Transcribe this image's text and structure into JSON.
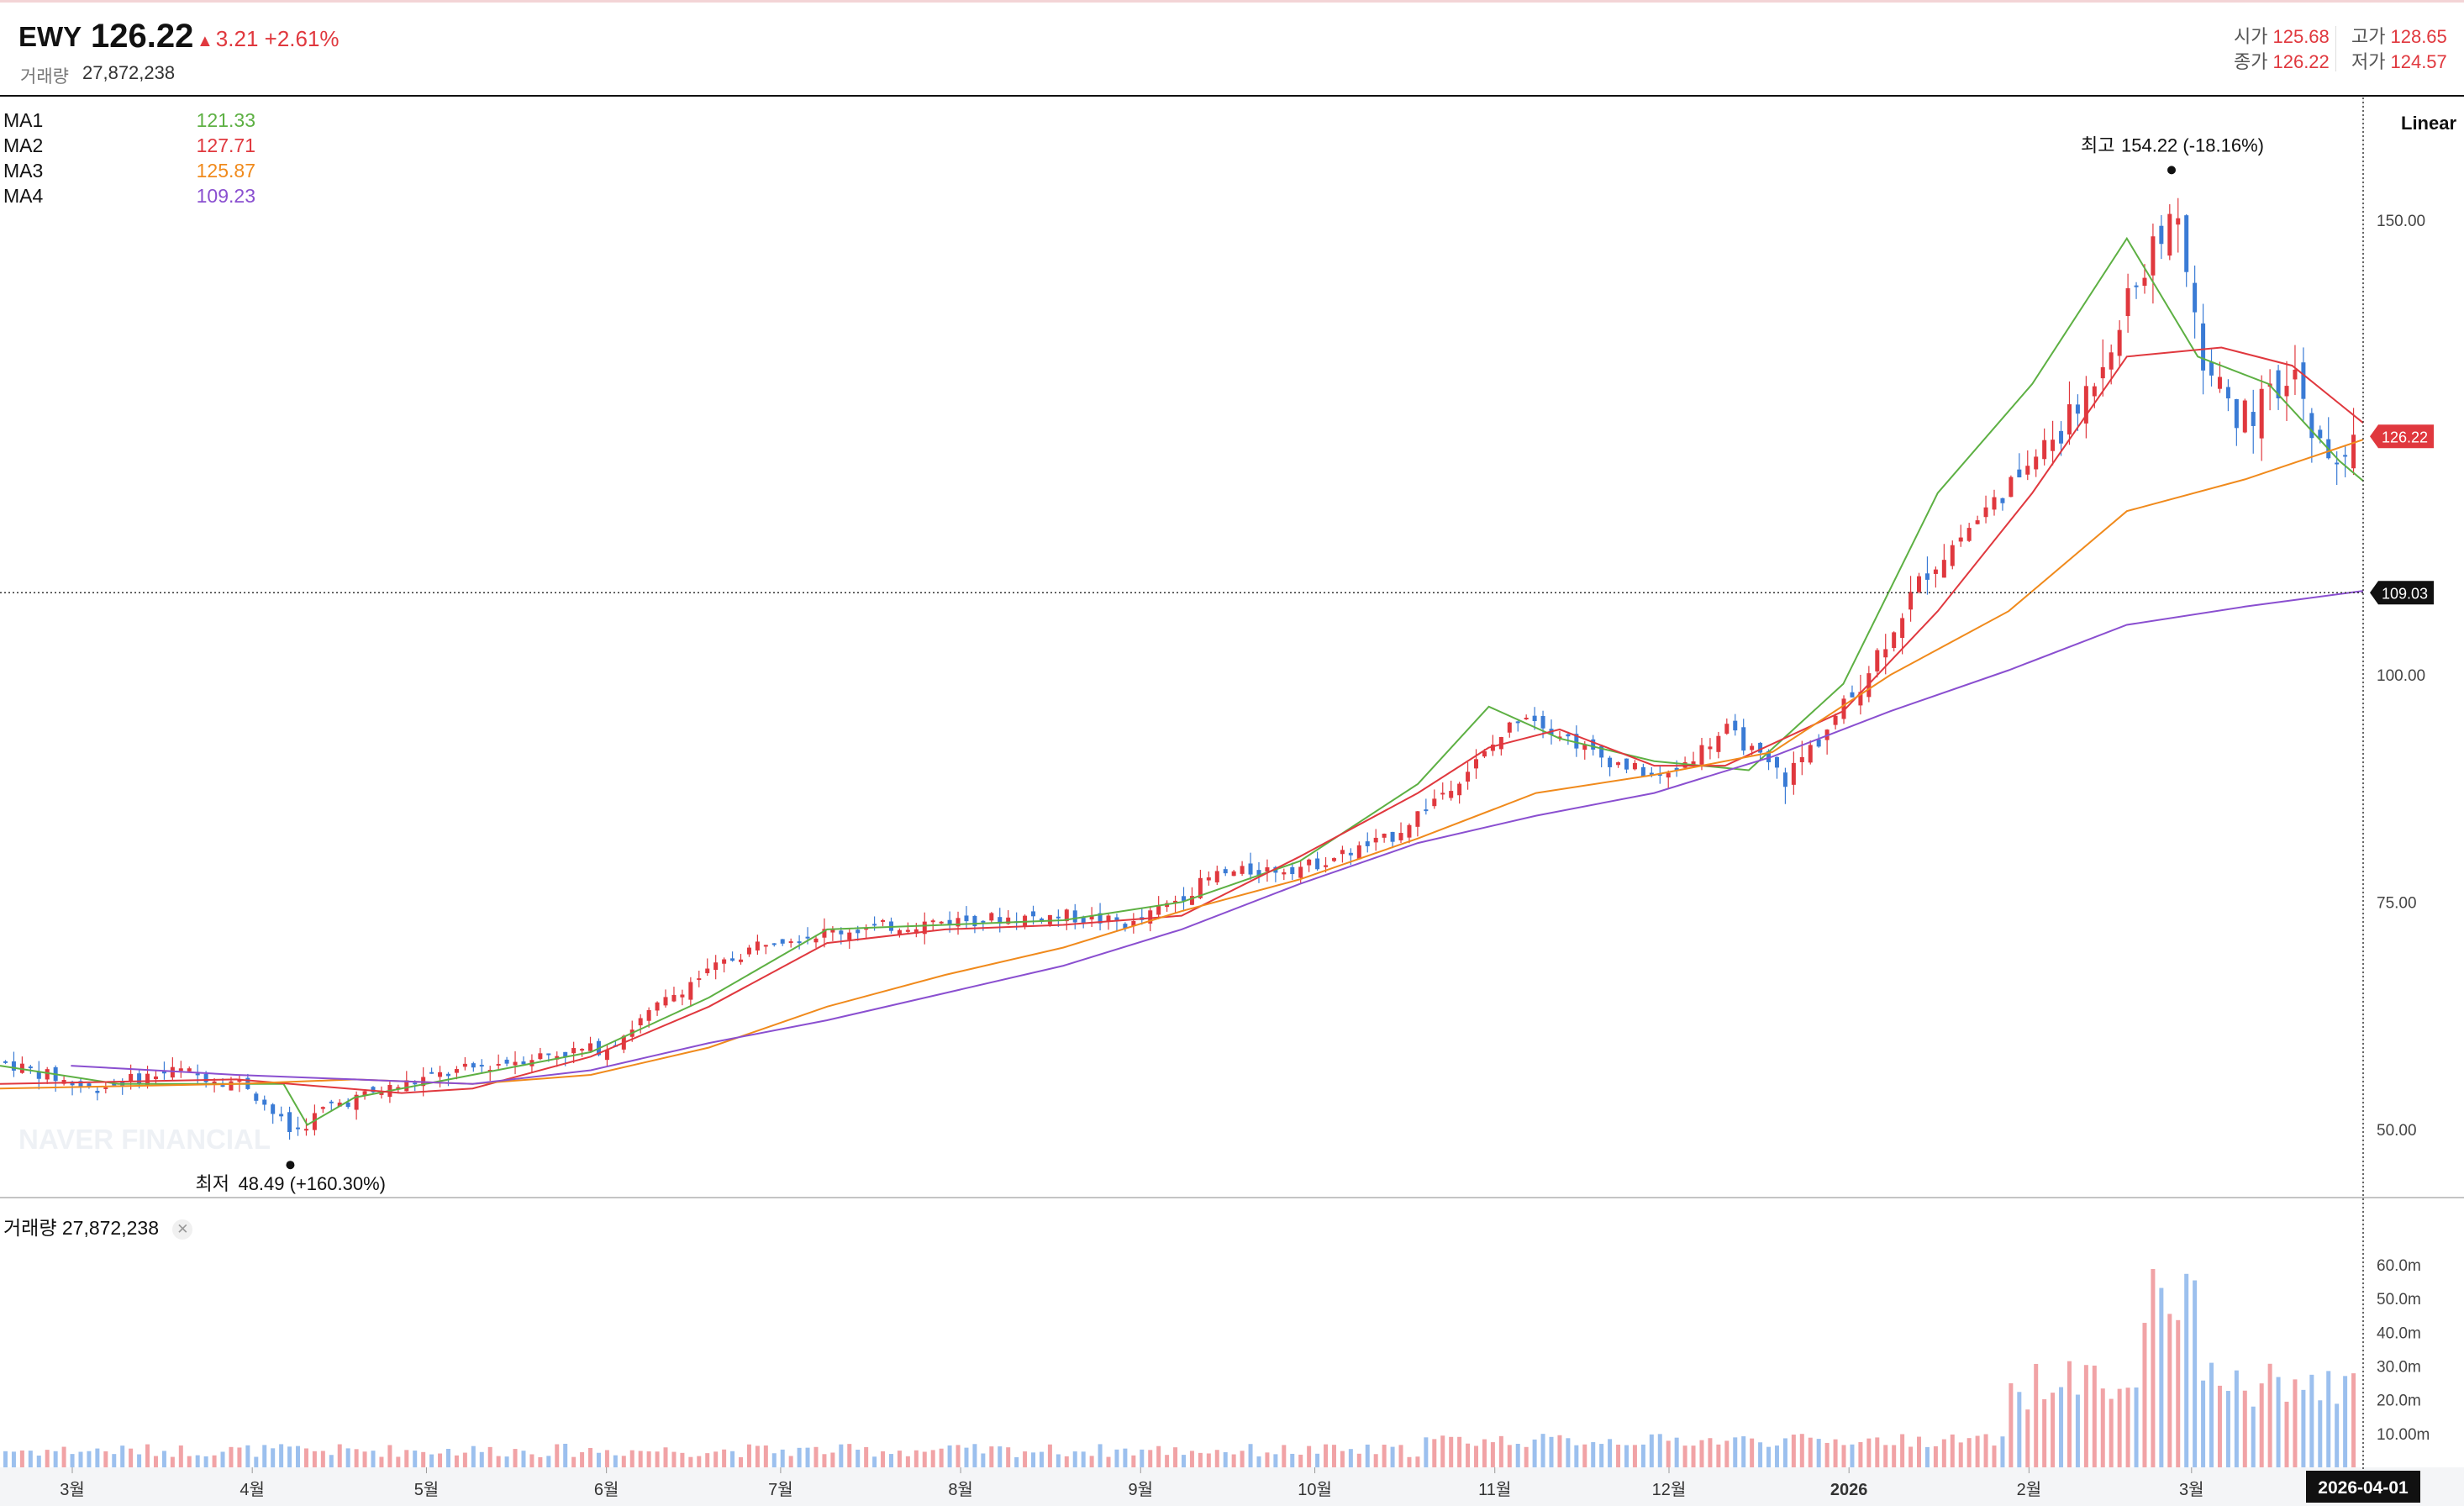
{
  "header": {
    "symbol": "EWY",
    "price": "126.22",
    "change": "3.21",
    "change_pct": "+2.61%",
    "volume_label": "거래량",
    "volume_value": "27,872,238",
    "open_label": "시가",
    "open_value": "125.68",
    "close_label": "종가",
    "close_value": "126.22",
    "high_label": "고가",
    "high_value": "128.65",
    "low_label": "저가",
    "low_value": "124.57"
  },
  "ma_legend": [
    {
      "name": "MA1",
      "value": "121.33",
      "color": "#5db043"
    },
    {
      "name": "MA2",
      "value": "127.71",
      "color": "#e0383e"
    },
    {
      "name": "MA3",
      "value": "125.87",
      "color": "#f08a1c"
    },
    {
      "name": "MA4",
      "value": "109.23",
      "color": "#8a4fd0"
    }
  ],
  "volume_legend": {
    "label": "거래량",
    "value": "27,872,238",
    "close_icon": "close-icon"
  },
  "scale_mode": "Linear",
  "watermark": "NAVER FINANCIAL",
  "colors": {
    "up": "#e0383e",
    "down": "#3a7bd5",
    "ma1": "#5db043",
    "ma2": "#e0383e",
    "ma3": "#f08a1c",
    "ma4": "#8a4fd0"
  },
  "chart_data": {
    "type": "candlestick",
    "x_start": "2025-02-18",
    "x_end": "2026-04-01",
    "y_axis": {
      "ticks": [
        "150.00",
        "100.00",
        "75.00",
        "50.00"
      ],
      "ylim": [
        42.5,
        163.5
      ],
      "scale": "linear"
    },
    "x_axis_labels": [
      "3월",
      "4월",
      "5월",
      "6월",
      "7월",
      "8월",
      "9월",
      "10월",
      "11월",
      "12월",
      "2026",
      "2월",
      "3월"
    ],
    "cursor_date": "2026-04-01",
    "price_tag": "126.22",
    "crosshair_value": "109.03",
    "high_annotation": {
      "label": "최고",
      "value": "154.22",
      "pct": "(-18.16%)"
    },
    "low_annotation": {
      "label": "최저",
      "value": "48.49",
      "pct": "(+160.30%)"
    },
    "price_path": [
      {
        "date": "2025-02-18",
        "close": 57.5
      },
      {
        "date": "2025-03-05",
        "close": 54.5
      },
      {
        "date": "2025-03-20",
        "close": 56.5
      },
      {
        "date": "2025-04-01",
        "close": 55.0
      },
      {
        "date": "2025-04-09",
        "close": 49.5
      },
      {
        "date": "2025-04-15",
        "close": 52.5
      },
      {
        "date": "2025-05-01",
        "close": 55.5
      },
      {
        "date": "2025-05-20",
        "close": 58.0
      },
      {
        "date": "2025-06-02",
        "close": 59.0
      },
      {
        "date": "2025-06-16",
        "close": 66.0
      },
      {
        "date": "2025-06-30",
        "close": 71.0
      },
      {
        "date": "2025-07-15",
        "close": 72.0
      },
      {
        "date": "2025-08-01",
        "close": 73.0
      },
      {
        "date": "2025-08-20",
        "close": 73.5
      },
      {
        "date": "2025-09-01",
        "close": 72.5
      },
      {
        "date": "2025-09-15",
        "close": 78.0
      },
      {
        "date": "2025-10-01",
        "close": 79.0
      },
      {
        "date": "2025-10-15",
        "close": 82.0
      },
      {
        "date": "2025-10-31",
        "close": 91.0
      },
      {
        "date": "2025-11-07",
        "close": 96.0
      },
      {
        "date": "2025-11-20",
        "close": 91.0
      },
      {
        "date": "2025-12-01",
        "close": 88.5
      },
      {
        "date": "2025-12-12",
        "close": 94.0
      },
      {
        "date": "2025-12-22",
        "close": 88.5
      },
      {
        "date": "2026-01-02",
        "close": 97.0
      },
      {
        "date": "2026-01-15",
        "close": 111.0
      },
      {
        "date": "2026-01-27",
        "close": 119.0
      },
      {
        "date": "2026-02-10",
        "close": 128.5
      },
      {
        "date": "2026-02-20",
        "close": 142.0
      },
      {
        "date": "2026-02-27",
        "close": 151.0
      },
      {
        "date": "2026-03-04",
        "close": 135.0
      },
      {
        "date": "2026-03-10",
        "close": 128.0
      },
      {
        "date": "2026-03-20",
        "close": 132.0
      },
      {
        "date": "2026-03-26",
        "close": 122.0
      },
      {
        "date": "2026-04-01",
        "close": 126.22
      }
    ],
    "series": [
      {
        "name": "MA1",
        "values": [
          [
            0,
            57
          ],
          [
            0.05,
            55
          ],
          [
            0.12,
            55
          ],
          [
            0.13,
            50.5
          ],
          [
            0.15,
            53.5
          ],
          [
            0.2,
            56
          ],
          [
            0.25,
            58.5
          ],
          [
            0.3,
            64.5
          ],
          [
            0.35,
            72
          ],
          [
            0.4,
            72.5
          ],
          [
            0.45,
            73
          ],
          [
            0.5,
            75
          ],
          [
            0.55,
            79.5
          ],
          [
            0.6,
            88
          ],
          [
            0.63,
            96.5
          ],
          [
            0.66,
            93
          ],
          [
            0.7,
            90.5
          ],
          [
            0.74,
            89.5
          ],
          [
            0.78,
            99
          ],
          [
            0.82,
            120
          ],
          [
            0.86,
            132
          ],
          [
            0.9,
            148
          ],
          [
            0.93,
            135
          ],
          [
            0.96,
            132
          ],
          [
            0.99,
            123.5
          ],
          [
            1.0,
            121.33
          ]
        ]
      },
      {
        "name": "MA2",
        "values": [
          [
            0,
            55
          ],
          [
            0.1,
            55.5
          ],
          [
            0.17,
            54
          ],
          [
            0.2,
            54.5
          ],
          [
            0.25,
            58
          ],
          [
            0.3,
            63.5
          ],
          [
            0.35,
            70.5
          ],
          [
            0.4,
            72
          ],
          [
            0.45,
            72.5
          ],
          [
            0.5,
            73.5
          ],
          [
            0.55,
            80
          ],
          [
            0.6,
            87
          ],
          [
            0.63,
            92
          ],
          [
            0.66,
            94
          ],
          [
            0.7,
            90
          ],
          [
            0.73,
            90
          ],
          [
            0.78,
            96
          ],
          [
            0.82,
            107
          ],
          [
            0.86,
            120
          ],
          [
            0.9,
            135
          ],
          [
            0.94,
            136
          ],
          [
            0.97,
            134
          ],
          [
            1.0,
            127.71
          ]
        ]
      },
      {
        "name": "MA3",
        "values": [
          [
            0,
            54.5
          ],
          [
            0.1,
            55
          ],
          [
            0.15,
            55.5
          ],
          [
            0.2,
            55
          ],
          [
            0.25,
            56
          ],
          [
            0.3,
            59
          ],
          [
            0.35,
            63.5
          ],
          [
            0.4,
            67
          ],
          [
            0.45,
            70
          ],
          [
            0.5,
            74
          ],
          [
            0.55,
            77.5
          ],
          [
            0.6,
            82
          ],
          [
            0.65,
            87
          ],
          [
            0.7,
            89
          ],
          [
            0.75,
            91.5
          ],
          [
            0.8,
            100
          ],
          [
            0.85,
            107
          ],
          [
            0.9,
            118
          ],
          [
            0.95,
            121.5
          ],
          [
            1.0,
            125.87
          ]
        ]
      },
      {
        "name": "MA4",
        "values": [
          [
            0.03,
            57
          ],
          [
            0.1,
            56
          ],
          [
            0.15,
            55.5
          ],
          [
            0.2,
            55
          ],
          [
            0.25,
            56.5
          ],
          [
            0.3,
            59.5
          ],
          [
            0.35,
            62
          ],
          [
            0.4,
            65
          ],
          [
            0.45,
            68
          ],
          [
            0.5,
            72
          ],
          [
            0.55,
            77
          ],
          [
            0.6,
            81.5
          ],
          [
            0.65,
            84.5
          ],
          [
            0.7,
            87
          ],
          [
            0.75,
            91
          ],
          [
            0.8,
            96
          ],
          [
            0.85,
            100.5
          ],
          [
            0.9,
            105.5
          ],
          [
            0.95,
            107.5
          ],
          [
            1.0,
            109.23
          ]
        ]
      }
    ],
    "volume": {
      "ticks": [
        "60.0m",
        "50.0m",
        "40.0m",
        "30.0m",
        "20.0m",
        "10.00m"
      ],
      "last": "27,872,238"
    }
  }
}
